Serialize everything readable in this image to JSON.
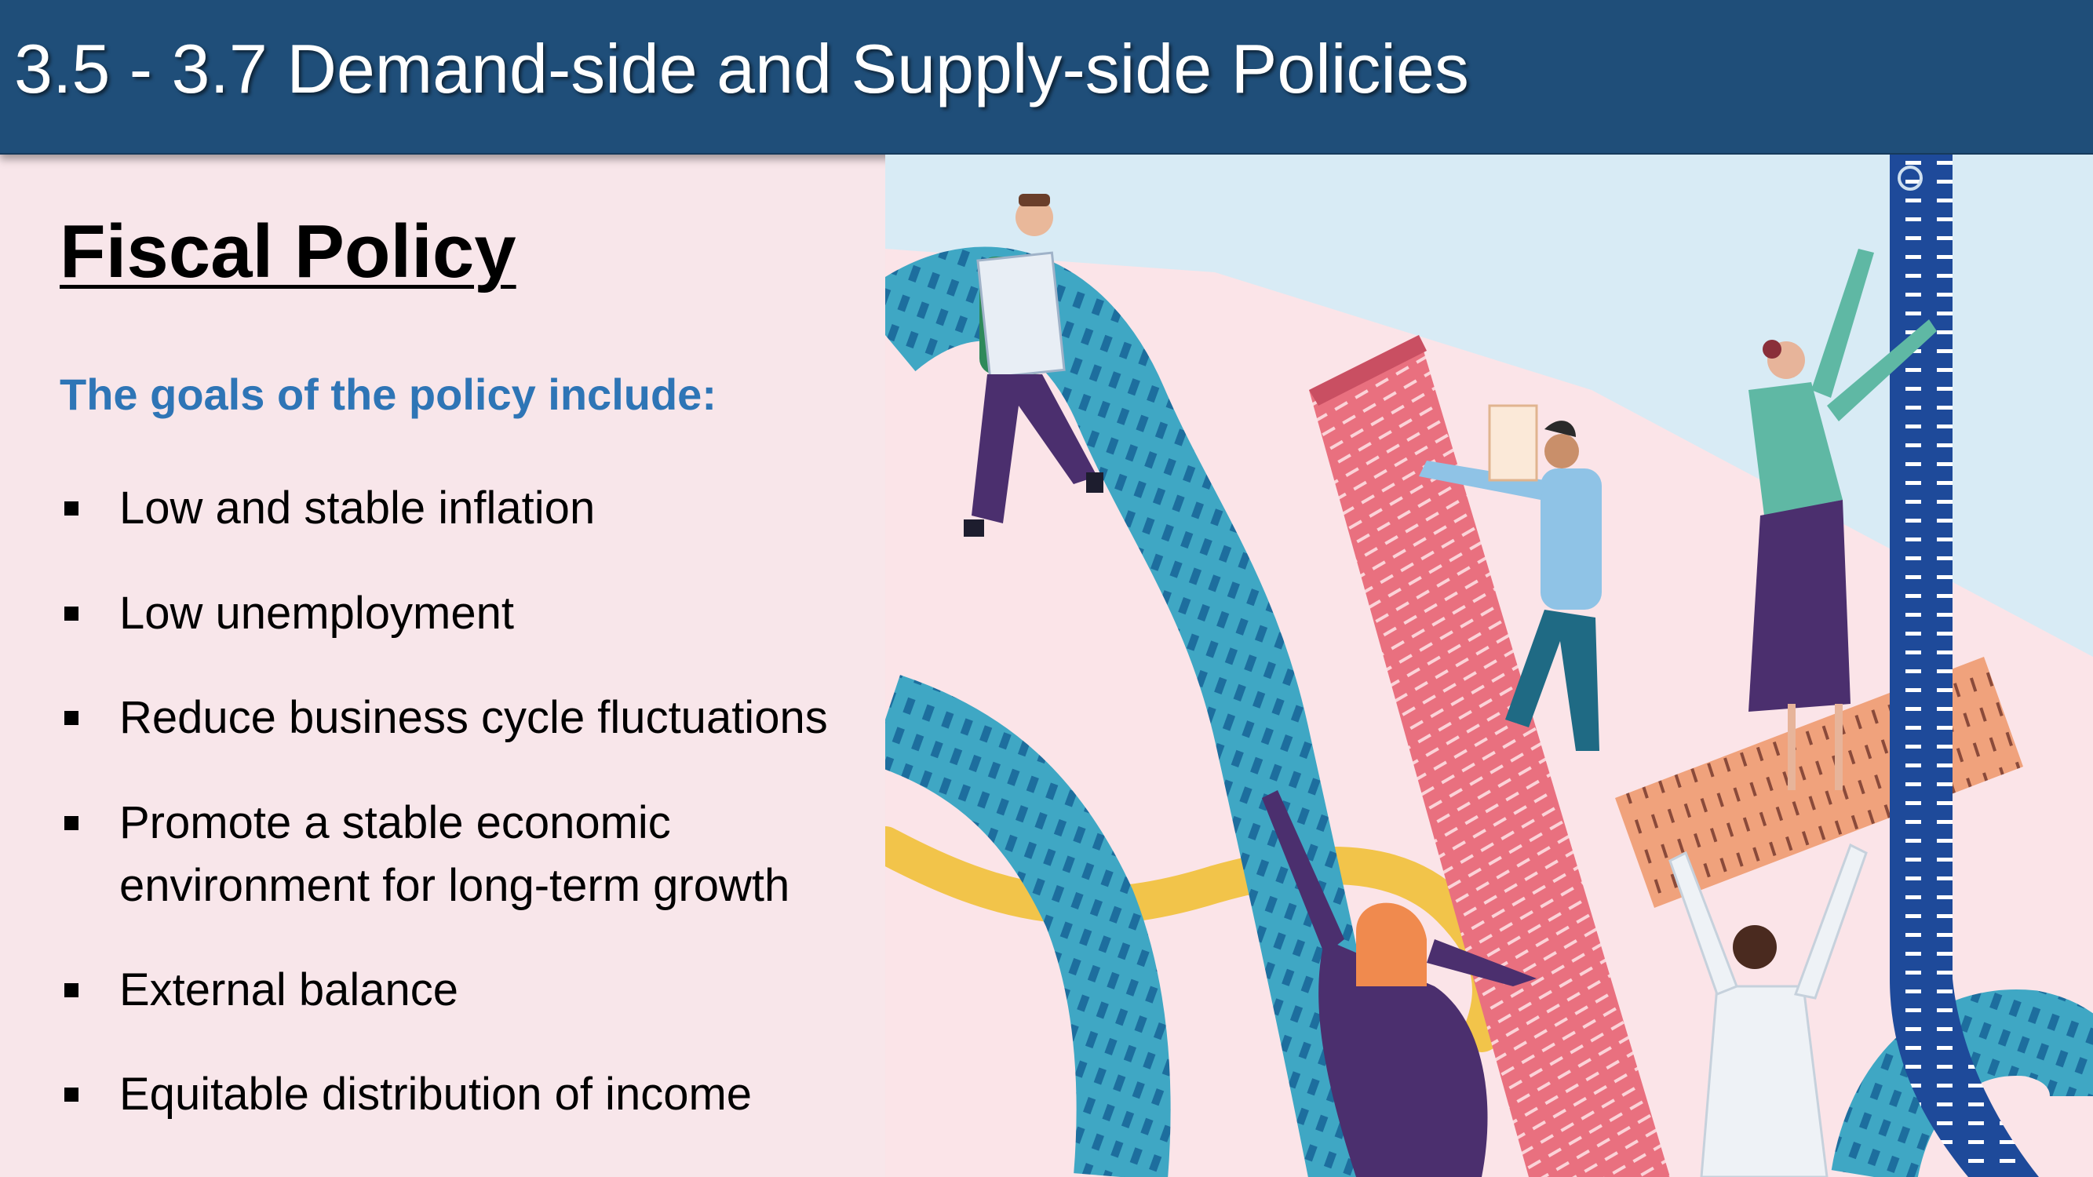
{
  "title": "3.5 - 3.7 Demand-side and Supply-side Policies",
  "heading": "Fiscal Policy",
  "subheading": "The goals of the policy include:",
  "goals": [
    "Low and stable inflation",
    "Low unemployment",
    "Reduce business cycle fluctuations",
    "Promote a stable economic",
    "environment for long-term growth",
    "External balance",
    "Equitable distribution of income"
  ],
  "colors": {
    "title_bar": "#1f4e79",
    "subheading": "#2e75b6",
    "background": "#f8e6ea"
  },
  "illustration": {
    "icon": "people-climbing-rulers-illustration"
  }
}
